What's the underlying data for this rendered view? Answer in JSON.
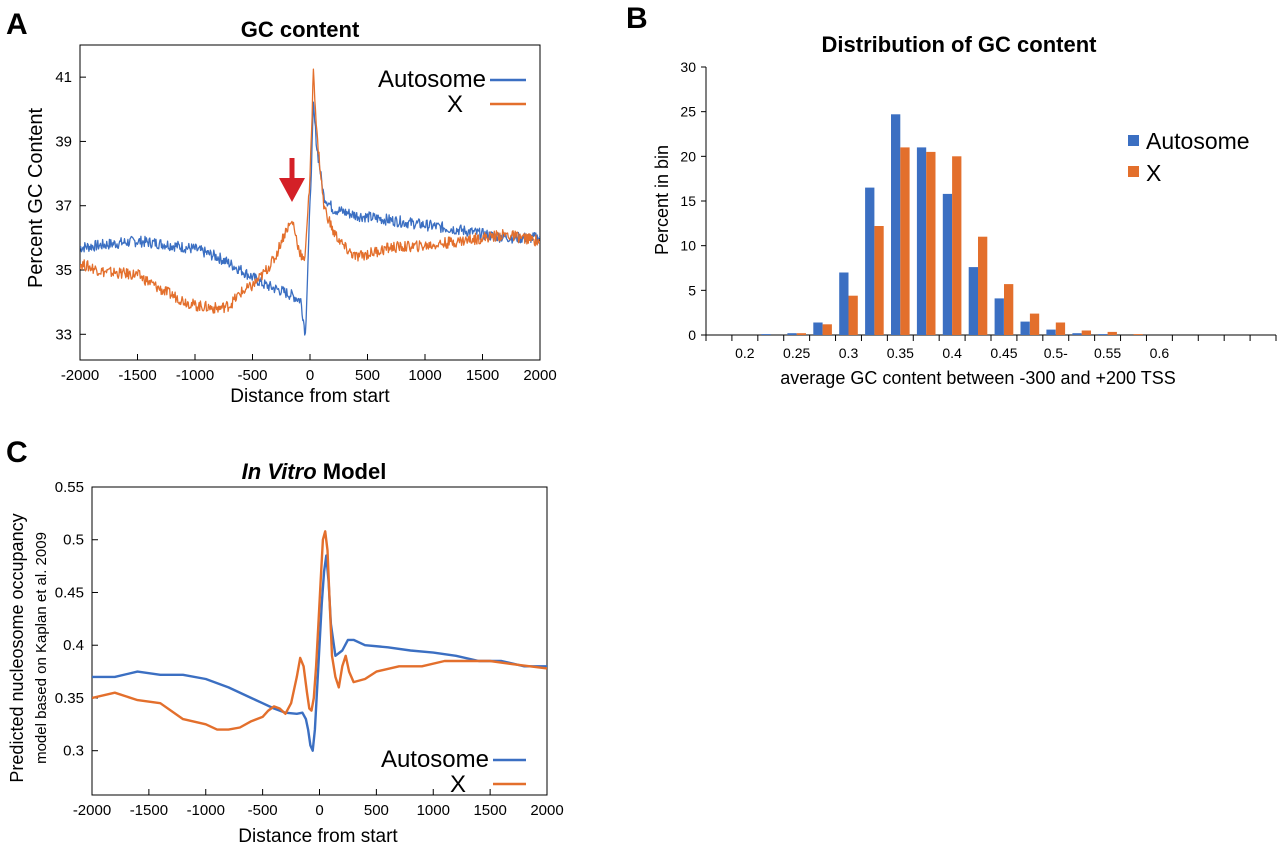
{
  "panels": {
    "a": "A",
    "b": "B",
    "c": "C"
  },
  "colors": {
    "autosome": "#3b6fc2",
    "x": "#e36f2c",
    "arrow": "#d42027"
  },
  "chart_data": [
    {
      "id": "A",
      "type": "line",
      "title": "GC content",
      "xlabel": "Distance from start",
      "ylabel": "Percent GC Content",
      "xlim": [
        -2000,
        2000
      ],
      "ylim": [
        32.2,
        42
      ],
      "xticks": [
        -2000,
        -1500,
        -1000,
        -500,
        0,
        500,
        1000,
        1500,
        2000
      ],
      "yticks": [
        33,
        35,
        37,
        39,
        41
      ],
      "legend": "top-right",
      "annotation": {
        "type": "arrow",
        "x": -170,
        "y": 36.7,
        "color": "#d42027"
      },
      "series": [
        {
          "name": "Autosome",
          "color": "#3b6fc2",
          "x": [
            -2000,
            -1750,
            -1500,
            -1250,
            -1000,
            -800,
            -600,
            -400,
            -250,
            -150,
            -80,
            -40,
            0,
            30,
            60,
            120,
            200,
            400,
            700,
            1000,
            1300,
            1600,
            1800,
            2000
          ],
          "y": [
            35.7,
            35.8,
            35.9,
            35.8,
            35.65,
            35.4,
            35.0,
            34.55,
            34.35,
            34.2,
            34.05,
            33.0,
            37.0,
            40.1,
            38.8,
            37.3,
            36.9,
            36.7,
            36.55,
            36.4,
            36.25,
            36.05,
            36.0,
            36.0
          ]
        },
        {
          "name": "X",
          "color": "#e36f2c",
          "x": [
            -2000,
            -1800,
            -1500,
            -1300,
            -1100,
            -1000,
            -900,
            -800,
            -700,
            -600,
            -500,
            -400,
            -300,
            -250,
            -200,
            -150,
            -100,
            -50,
            0,
            30,
            60,
            120,
            200,
            300,
            400,
            500,
            700,
            1000,
            1300,
            1500,
            1700,
            2000
          ],
          "y": [
            35.2,
            34.95,
            34.85,
            34.4,
            34.05,
            33.9,
            33.85,
            33.8,
            33.9,
            34.3,
            34.5,
            34.9,
            35.4,
            35.9,
            36.3,
            36.5,
            35.7,
            35.2,
            37.8,
            41.3,
            39.2,
            37.0,
            36.2,
            35.7,
            35.4,
            35.5,
            35.7,
            35.75,
            35.9,
            36.0,
            36.1,
            35.9
          ]
        }
      ]
    },
    {
      "id": "B",
      "type": "bar",
      "title": "Distribution of GC content",
      "xlabel": "average GC content between -300 and +200 TSS",
      "ylabel": "Percent in bin",
      "ylim": [
        0,
        30
      ],
      "yticks": [
        0,
        5,
        10,
        15,
        20,
        25,
        30
      ],
      "tick_labels": [
        "0.2",
        "0.25",
        "0.3",
        "0.35",
        "0.4",
        "0.45",
        "0.5-",
        "0.55",
        "0.6"
      ],
      "legend": "right",
      "n_bins": 22,
      "series": [
        {
          "name": "Autosome",
          "color": "#3b6fc2",
          "values": [
            0,
            0,
            0.1,
            0.2,
            1.4,
            7.0,
            16.5,
            24.7,
            21.0,
            15.8,
            7.6,
            4.1,
            1.5,
            0.6,
            0.2,
            0.1,
            0,
            0,
            0,
            0,
            0,
            0
          ]
        },
        {
          "name": "X",
          "color": "#e36f2c",
          "values": [
            0,
            0,
            0,
            0.2,
            1.2,
            4.4,
            12.2,
            21.0,
            20.5,
            20.0,
            11.0,
            5.7,
            2.4,
            1.4,
            0.5,
            0.35,
            0.1,
            0,
            0,
            0,
            0,
            0
          ]
        }
      ]
    },
    {
      "id": "C",
      "type": "line",
      "title_italic": "In Vitro",
      "title_rest": " Model",
      "xlabel": "Distance from start",
      "ylabel": "Predicted nucleosome occupancy",
      "ylabel2": "model based on Kaplan et al. 2009",
      "xlim": [
        -2000,
        2000
      ],
      "ylim": [
        0.258,
        0.55
      ],
      "xticks": [
        -2000,
        -1500,
        -1000,
        -500,
        0,
        500,
        1000,
        1500,
        2000
      ],
      "yticks": [
        0.3,
        0.35,
        0.4,
        0.45,
        0.5,
        0.55
      ],
      "legend": "bottom-right",
      "series": [
        {
          "name": "Autosome",
          "color": "#3b6fc2",
          "x": [
            -2000,
            -1800,
            -1600,
            -1400,
            -1200,
            -1000,
            -800,
            -600,
            -500,
            -400,
            -300,
            -200,
            -150,
            -120,
            -100,
            -80,
            -60,
            -40,
            -20,
            0,
            20,
            40,
            60,
            80,
            100,
            140,
            200,
            250,
            300,
            400,
            600,
            800,
            1000,
            1200,
            1400,
            1600,
            1800,
            2000
          ],
          "y": [
            0.37,
            0.37,
            0.375,
            0.372,
            0.372,
            0.368,
            0.36,
            0.35,
            0.345,
            0.34,
            0.336,
            0.335,
            0.336,
            0.33,
            0.32,
            0.305,
            0.3,
            0.32,
            0.36,
            0.4,
            0.44,
            0.47,
            0.485,
            0.46,
            0.42,
            0.39,
            0.395,
            0.405,
            0.405,
            0.4,
            0.398,
            0.395,
            0.393,
            0.39,
            0.385,
            0.385,
            0.38,
            0.38
          ]
        },
        {
          "name": "X",
          "color": "#e36f2c",
          "x": [
            -2000,
            -1800,
            -1600,
            -1400,
            -1200,
            -1000,
            -900,
            -800,
            -700,
            -600,
            -500,
            -450,
            -400,
            -350,
            -300,
            -250,
            -200,
            -170,
            -140,
            -110,
            -90,
            -70,
            -50,
            -30,
            -10,
            10,
            30,
            50,
            70,
            90,
            110,
            140,
            170,
            200,
            230,
            260,
            300,
            400,
            500,
            700,
            900,
            1100,
            1300,
            1500,
            1700,
            2000
          ],
          "y": [
            0.35,
            0.355,
            0.348,
            0.345,
            0.33,
            0.325,
            0.32,
            0.32,
            0.322,
            0.328,
            0.332,
            0.338,
            0.342,
            0.34,
            0.335,
            0.345,
            0.37,
            0.388,
            0.38,
            0.355,
            0.34,
            0.338,
            0.35,
            0.38,
            0.42,
            0.46,
            0.5,
            0.508,
            0.49,
            0.44,
            0.39,
            0.37,
            0.36,
            0.38,
            0.39,
            0.375,
            0.365,
            0.368,
            0.375,
            0.38,
            0.38,
            0.385,
            0.385,
            0.385,
            0.382,
            0.378
          ]
        }
      ]
    }
  ]
}
